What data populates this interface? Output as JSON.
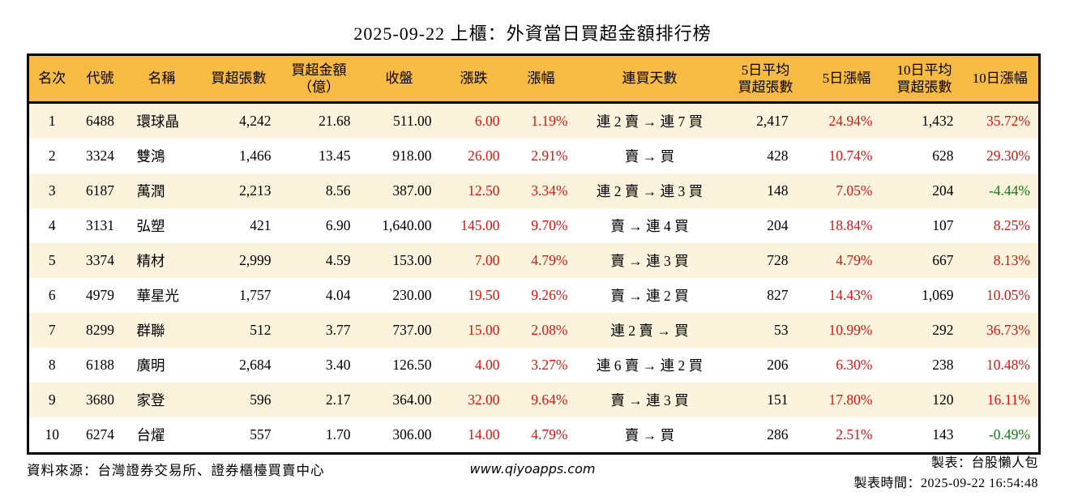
{
  "title": "2025-09-22 上櫃：外資當日買超金額排行榜",
  "colors": {
    "header_bg": "#F7BA42",
    "row_alt_bg": "#FCF3DC",
    "up_red": "#DE1212",
    "down_green": "#0E7C0E",
    "border": "#000000"
  },
  "chart_data": {
    "type": "table",
    "title": "2025-09-22 上櫃：外資當日買超金額排行榜",
    "columns": [
      {
        "label": "名次",
        "align": "ac",
        "type": "plain"
      },
      {
        "label": "代號",
        "align": "ac",
        "type": "plain"
      },
      {
        "label": "名稱",
        "align": "al",
        "type": "plain"
      },
      {
        "label": "買超張數",
        "align": "ar",
        "type": "plain"
      },
      {
        "label": "買超金額\n（億）",
        "align": "ar",
        "type": "plain"
      },
      {
        "label": "收盤",
        "align": "ar",
        "type": "plain"
      },
      {
        "label": "漲跌",
        "align": "ar",
        "type": "updown"
      },
      {
        "label": "漲幅",
        "align": "ar",
        "type": "updown"
      },
      {
        "label": "連買天數",
        "align": "ac",
        "type": "plain"
      },
      {
        "label": "5日平均\n買超張數",
        "align": "ar",
        "type": "plain"
      },
      {
        "label": "5日漲幅",
        "align": "ar",
        "type": "updown"
      },
      {
        "label": "10日平均\n買超張數",
        "align": "ar",
        "type": "plain"
      },
      {
        "label": "10日漲幅",
        "align": "ar",
        "type": "updown"
      }
    ],
    "rows": [
      [
        "1",
        "6488",
        "環球晶",
        "4,242",
        "21.68",
        "511.00",
        "6.00",
        "1.19%",
        "連 2 賣 → 連 7 買",
        "2,417",
        "24.94%",
        "1,432",
        "35.72%"
      ],
      [
        "2",
        "3324",
        "雙鴻",
        "1,466",
        "13.45",
        "918.00",
        "26.00",
        "2.91%",
        "賣 → 買",
        "428",
        "10.74%",
        "628",
        "29.30%"
      ],
      [
        "3",
        "6187",
        "萬潤",
        "2,213",
        "8.56",
        "387.00",
        "12.50",
        "3.34%",
        "連 2 賣 → 連 3 買",
        "148",
        "7.05%",
        "204",
        "-4.44%"
      ],
      [
        "4",
        "3131",
        "弘塑",
        "421",
        "6.90",
        "1,640.00",
        "145.00",
        "9.70%",
        "賣 → 連 4 買",
        "204",
        "18.84%",
        "107",
        "8.25%"
      ],
      [
        "5",
        "3374",
        "精材",
        "2,999",
        "4.59",
        "153.00",
        "7.00",
        "4.79%",
        "賣 → 連 3 買",
        "728",
        "4.79%",
        "667",
        "8.13%"
      ],
      [
        "6",
        "4979",
        "華星光",
        "1,757",
        "4.04",
        "230.00",
        "19.50",
        "9.26%",
        "賣 → 連 2 買",
        "827",
        "14.43%",
        "1,069",
        "10.05%"
      ],
      [
        "7",
        "8299",
        "群聯",
        "512",
        "3.77",
        "737.00",
        "15.00",
        "2.08%",
        "連 2 賣 → 買",
        "53",
        "10.99%",
        "292",
        "36.73%"
      ],
      [
        "8",
        "6188",
        "廣明",
        "2,684",
        "3.40",
        "126.50",
        "4.00",
        "3.27%",
        "連 6 賣 → 連 2 買",
        "206",
        "6.30%",
        "238",
        "10.48%"
      ],
      [
        "9",
        "3680",
        "家登",
        "596",
        "2.17",
        "364.00",
        "32.00",
        "9.64%",
        "賣 → 連 3 買",
        "151",
        "17.80%",
        "120",
        "16.11%"
      ],
      [
        "10",
        "6274",
        "台燿",
        "557",
        "1.70",
        "306.00",
        "14.00",
        "4.79%",
        "賣 → 買",
        "286",
        "2.51%",
        "143",
        "-0.49%"
      ]
    ]
  },
  "footer": {
    "source": "資料來源：台灣證券交易所、證券櫃檯買賣中心",
    "site": "www.qiyoapps.com",
    "maker": "製表：台股懶人包",
    "timestamp": "製表時間：2025-09-22 16:54:48"
  }
}
